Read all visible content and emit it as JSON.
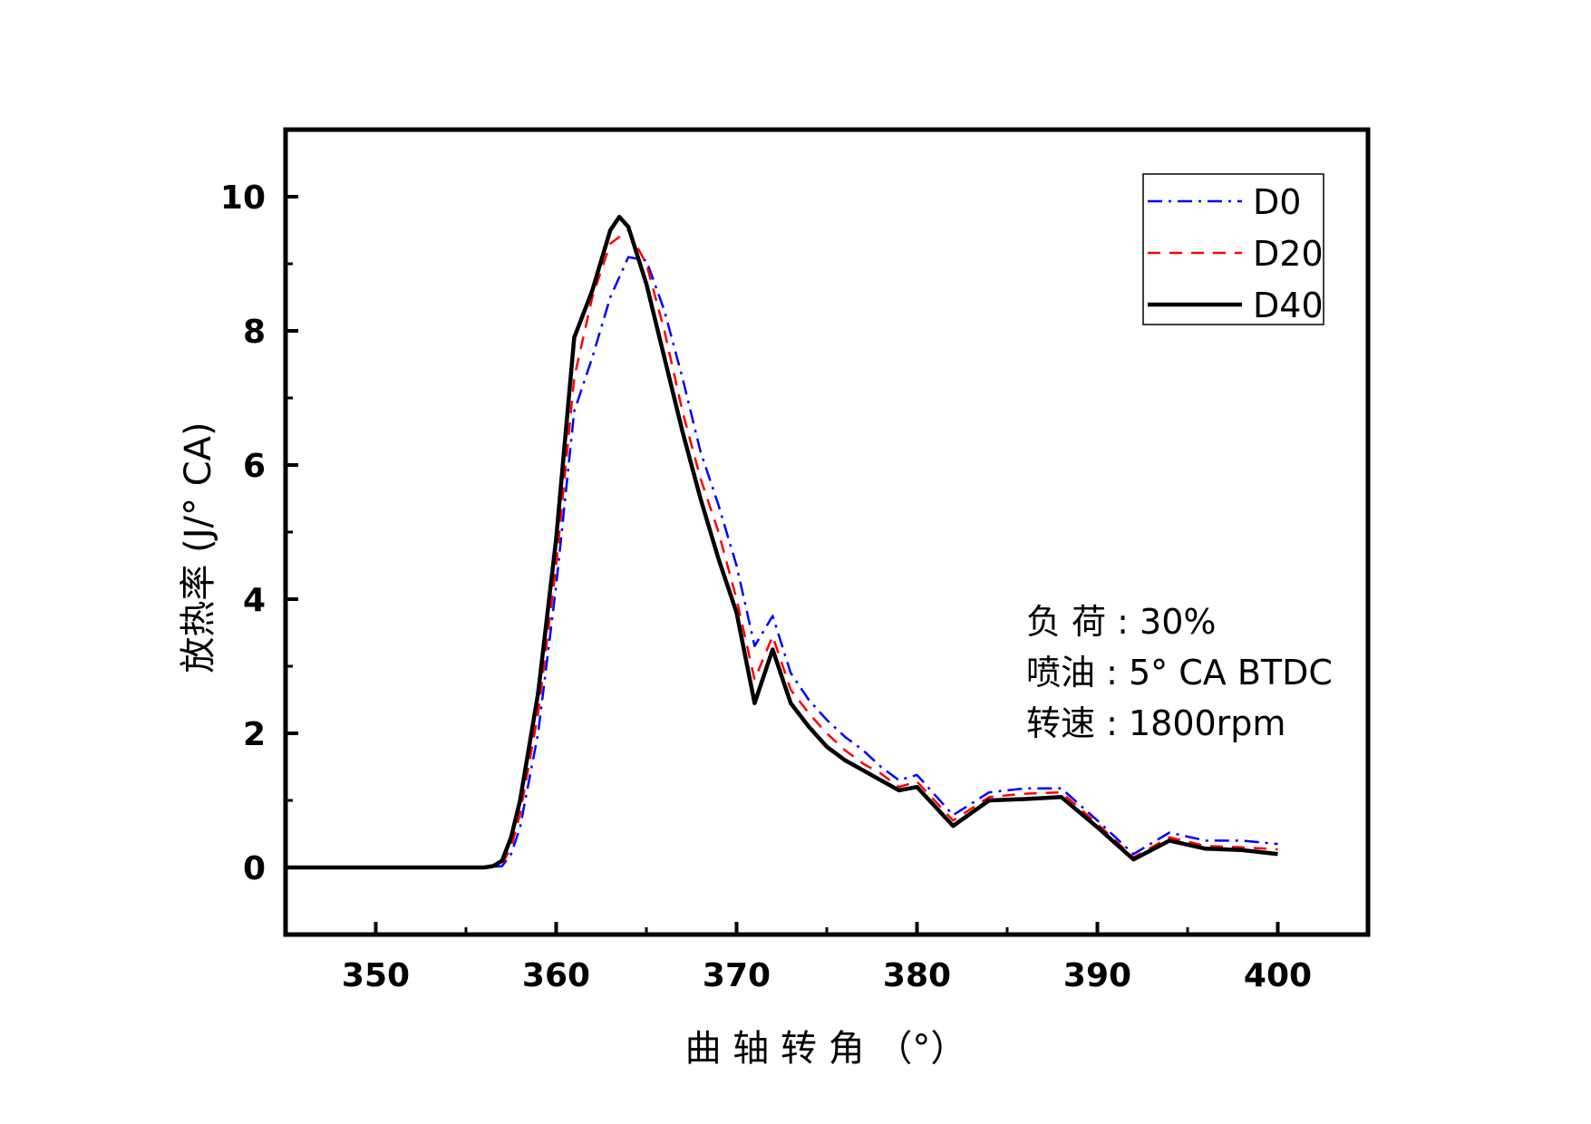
{
  "chart_data": {
    "type": "line",
    "title": "",
    "xlabel": "曲 轴 转 角 （°）",
    "ylabel": "放热率 (J/° CA)",
    "xlim": [
      345,
      405
    ],
    "ylim": [
      -1,
      11
    ],
    "xticks": [
      350,
      360,
      370,
      380,
      390,
      400
    ],
    "yticks": [
      0,
      2,
      4,
      6,
      8,
      10
    ],
    "grid": false,
    "legend": "top-right",
    "annotations": [
      "负 荷 : 30%",
      "喷油 : 5° CA BTDC",
      "转速  : 1800rpm"
    ],
    "series": [
      {
        "name": "D0",
        "color": "#0000ff",
        "style": "dash-dot",
        "x": [
          345,
          356,
          357,
          357.5,
          358,
          359,
          360,
          361,
          362,
          363,
          364,
          365,
          366,
          367,
          368,
          369,
          370,
          371,
          372,
          373,
          374,
          375,
          376,
          377,
          378,
          379,
          380,
          382,
          384,
          386,
          388,
          390,
          392,
          394,
          396,
          398,
          400
        ],
        "y": [
          0,
          0,
          0.02,
          0.2,
          0.6,
          2.0,
          4.2,
          6.8,
          7.6,
          8.5,
          9.1,
          9.05,
          8.3,
          7.3,
          6.2,
          5.4,
          4.5,
          3.3,
          3.75,
          2.9,
          2.5,
          2.2,
          1.95,
          1.75,
          1.5,
          1.3,
          1.38,
          0.78,
          1.12,
          1.18,
          1.18,
          0.7,
          0.2,
          0.52,
          0.4,
          0.4,
          0.35
        ]
      },
      {
        "name": "D20",
        "color": "#ff0000",
        "style": "dash",
        "x": [
          345,
          356,
          357,
          357.5,
          358,
          359,
          360,
          361,
          362,
          363,
          364,
          365,
          366,
          367,
          368,
          369,
          370,
          371,
          372,
          373,
          374,
          375,
          376,
          377,
          378,
          379,
          380,
          382,
          384,
          386,
          388,
          390,
          392,
          394,
          396,
          398,
          400
        ],
        "y": [
          0,
          0,
          0.05,
          0.3,
          0.8,
          2.3,
          4.5,
          7.3,
          8.5,
          9.3,
          9.5,
          9.0,
          8.0,
          6.8,
          5.8,
          5.0,
          4.0,
          2.8,
          3.45,
          2.65,
          2.3,
          2.0,
          1.75,
          1.55,
          1.4,
          1.2,
          1.28,
          0.7,
          1.05,
          1.1,
          1.12,
          0.65,
          0.15,
          0.45,
          0.32,
          0.3,
          0.27
        ]
      },
      {
        "name": "D40",
        "color": "#000000",
        "style": "solid",
        "x": [
          345,
          356,
          356.5,
          357,
          357.5,
          358,
          359,
          360,
          361,
          362,
          363,
          363.5,
          364,
          365,
          366,
          367,
          368,
          369,
          370,
          371,
          372,
          373,
          374,
          375,
          376,
          377,
          378,
          379,
          380,
          382,
          384,
          386,
          388,
          390,
          392,
          394,
          396,
          398,
          400
        ],
        "y": [
          0,
          0,
          0.02,
          0.1,
          0.45,
          1.0,
          2.6,
          4.9,
          7.9,
          8.6,
          9.5,
          9.7,
          9.55,
          8.7,
          7.6,
          6.5,
          5.5,
          4.6,
          3.8,
          2.45,
          3.25,
          2.45,
          2.1,
          1.8,
          1.6,
          1.45,
          1.3,
          1.15,
          1.2,
          0.62,
          1.0,
          1.02,
          1.05,
          0.6,
          0.12,
          0.4,
          0.28,
          0.26,
          0.2
        ]
      }
    ]
  }
}
